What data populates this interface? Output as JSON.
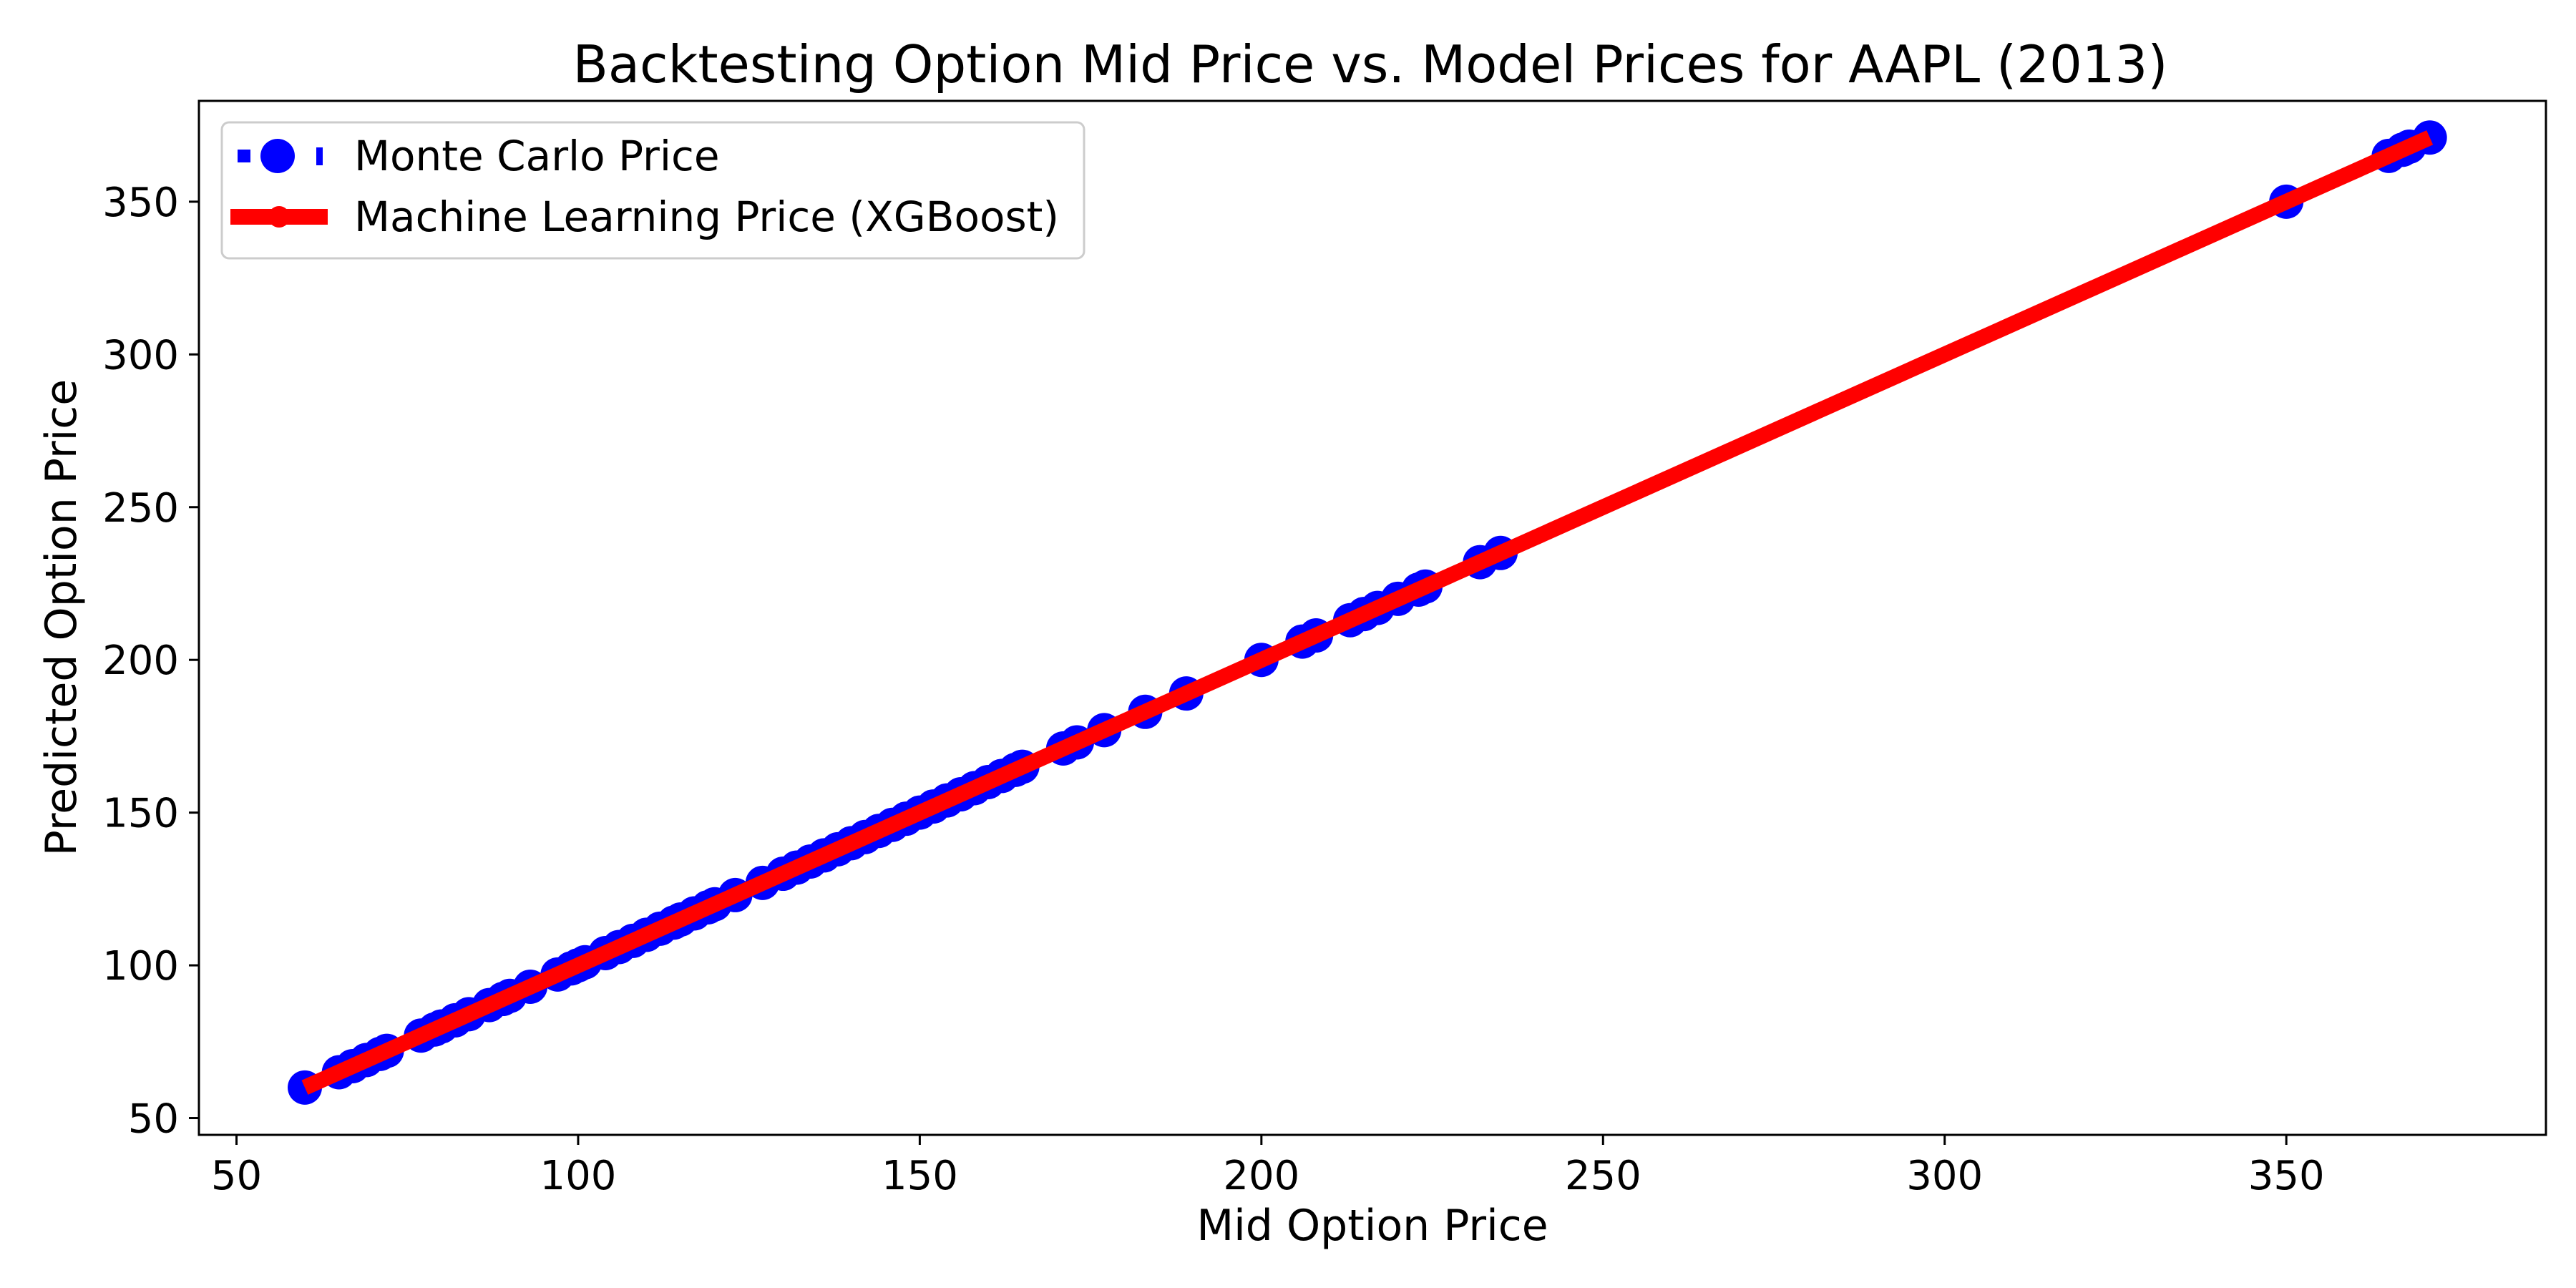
{
  "chart_data": {
    "type": "line",
    "title": "Backtesting Option Mid Price vs. Model Prices for AAPL (2013)",
    "xlabel": "Mid Option Price",
    "ylabel": "Predicted Option Price",
    "xlim": [
      44.5,
      388
    ],
    "ylim": [
      44.5,
      383
    ],
    "x_ticks": [
      50,
      100,
      150,
      200,
      250,
      300,
      350
    ],
    "y_ticks": [
      50,
      100,
      150,
      200,
      250,
      300,
      350
    ],
    "x_tick_labels": [
      "50",
      "100",
      "150",
      "200",
      "250",
      "300",
      "350"
    ],
    "y_tick_labels": [
      "50",
      "100",
      "150",
      "200",
      "250",
      "300",
      "350"
    ],
    "grid": false,
    "legend_position": "top-left",
    "series": [
      {
        "name": "Monte Carlo Price",
        "style": "scatter",
        "color": "#0000ff",
        "points": [
          [
            60,
            60
          ],
          [
            65,
            65
          ],
          [
            67,
            67
          ],
          [
            69,
            69
          ],
          [
            71,
            71
          ],
          [
            72,
            72
          ],
          [
            77,
            77
          ],
          [
            79,
            79
          ],
          [
            80,
            80
          ],
          [
            82,
            82
          ],
          [
            84,
            84
          ],
          [
            87,
            87
          ],
          [
            89,
            89
          ],
          [
            90,
            90
          ],
          [
            93,
            93
          ],
          [
            97,
            97
          ],
          [
            99,
            99
          ],
          [
            100,
            100
          ],
          [
            101,
            101
          ],
          [
            104,
            104
          ],
          [
            106,
            106
          ],
          [
            108,
            108
          ],
          [
            110,
            110
          ],
          [
            112,
            112
          ],
          [
            114,
            114
          ],
          [
            115,
            115
          ],
          [
            117,
            117
          ],
          [
            119,
            119
          ],
          [
            120,
            120
          ],
          [
            123,
            123
          ],
          [
            127,
            127
          ],
          [
            130,
            130
          ],
          [
            132,
            132
          ],
          [
            134,
            134
          ],
          [
            136,
            136
          ],
          [
            138,
            138
          ],
          [
            140,
            140
          ],
          [
            142,
            142
          ],
          [
            144,
            144
          ],
          [
            146,
            146
          ],
          [
            148,
            148
          ],
          [
            150,
            150
          ],
          [
            152,
            152
          ],
          [
            154,
            154
          ],
          [
            156,
            156
          ],
          [
            158,
            158
          ],
          [
            160,
            160
          ],
          [
            162,
            162
          ],
          [
            164,
            164
          ],
          [
            165,
            165
          ],
          [
            171,
            171
          ],
          [
            173,
            173
          ],
          [
            177,
            177
          ],
          [
            183,
            183
          ],
          [
            189,
            189
          ],
          [
            200,
            200
          ],
          [
            206,
            206
          ],
          [
            208,
            208
          ],
          [
            213,
            213
          ],
          [
            215,
            215
          ],
          [
            217,
            217
          ],
          [
            220,
            220
          ],
          [
            223,
            223
          ],
          [
            224,
            224
          ],
          [
            232,
            232
          ],
          [
            235,
            235
          ],
          [
            350,
            350
          ],
          [
            365,
            365
          ],
          [
            367,
            367
          ],
          [
            368,
            368
          ],
          [
            371,
            371
          ]
        ]
      },
      {
        "name": "Machine Learning Price (XGBoost)",
        "style": "line",
        "color": "#ff0000",
        "points": [
          [
            60,
            60
          ],
          [
            371,
            371
          ]
        ]
      }
    ]
  }
}
